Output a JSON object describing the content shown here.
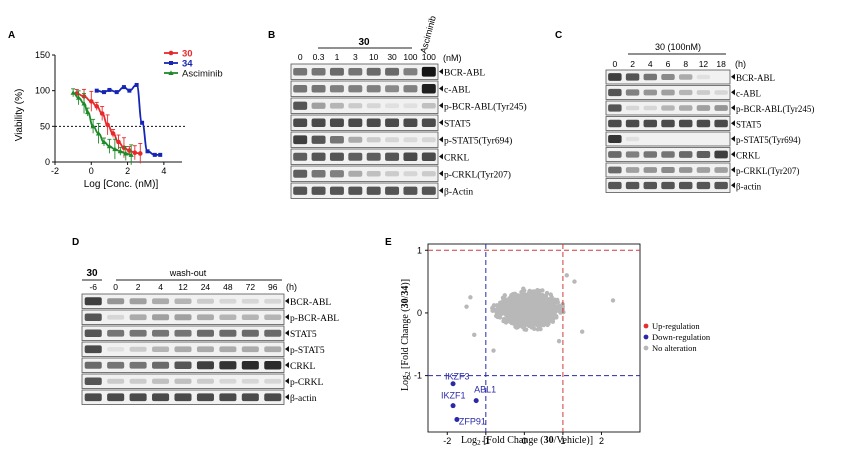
{
  "panels": {
    "A": {
      "letter": "A",
      "legend": [
        {
          "label": "30",
          "color": "#e8292b"
        },
        {
          "label": "34",
          "color": "#1626b4"
        },
        {
          "label": "Asciminib",
          "color": "#1f8a2a"
        }
      ],
      "ylabel": "Viability (%)",
      "xlabel": "Log [Conc. (nM)]",
      "x_ticks": [
        "-2",
        "0",
        "2",
        "4"
      ],
      "y_ticks": [
        "0",
        "50",
        "100",
        "150"
      ]
    },
    "B": {
      "letter": "B",
      "compound": "30",
      "extra_label": "Asciminib",
      "unit": "(nM)",
      "lanes": [
        "0",
        "0.3",
        "1",
        "3",
        "10",
        "30",
        "100",
        "100"
      ],
      "bands": [
        "BCR-ABL",
        "c-ABL",
        "p-BCR-ABL(Tyr245)",
        "STAT5",
        "p-STAT5(Tyr694)",
        "CRKL",
        "p-CRKL(Tyr207)",
        "β-Actin"
      ]
    },
    "C": {
      "letter": "C",
      "header": "30 (100nM)",
      "unit": "(h)",
      "lanes": [
        "0",
        "2",
        "4",
        "6",
        "8",
        "12",
        "18"
      ],
      "bands": [
        "BCR-ABL",
        "c-ABL",
        "p-BCR-ABL(Tyr245)",
        "STAT5",
        "p-STAT5(Tyr694)",
        "CRKL",
        "p-CRKL(Tyr207)",
        "β-actin"
      ]
    },
    "D": {
      "letter": "D",
      "compound": "30",
      "washout": "wash-out",
      "unit": "(h)",
      "lanes": [
        "-6",
        "0",
        "2",
        "4",
        "12",
        "24",
        "48",
        "72",
        "96"
      ],
      "bands": [
        "BCR-ABL",
        "p-BCR-ABL",
        "STAT5",
        "p-STAT5",
        "CRKL",
        "p-CRKL",
        "β-actin"
      ]
    },
    "E": {
      "letter": "E",
      "xlabel": "Log2 [Fold Change (30/Vehicle)]",
      "ylabel": "Log2 [Fold Change (30/34)]",
      "x_ticks": [
        "-2",
        "-1",
        "0",
        "1",
        "2"
      ],
      "y_ticks": [
        "1",
        "0",
        "-1"
      ],
      "legend": [
        {
          "label": "Up-regulation",
          "color": "#e03030"
        },
        {
          "label": "Down-regulation",
          "color": "#2a2aa8"
        },
        {
          "label": "No alteration",
          "color": "#b8b8b8"
        }
      ],
      "genes": [
        "IKZF3",
        "IKZF1",
        "ABL1",
        "ZFP91"
      ]
    }
  },
  "chart_data": [
    {
      "type": "scatter",
      "xlabel": "Log [Conc. (nM)]",
      "ylabel": "Viability (%)",
      "xlim": [
        -2,
        5
      ],
      "ylim": [
        0,
        150
      ],
      "grid": false,
      "legend_position": "top-right",
      "reference_line_y": 50,
      "series": [
        {
          "name": "30",
          "color": "#e8292b",
          "x": [
            -0.8,
            -0.4,
            0,
            0.3,
            0.6,
            0.9,
            1.2,
            1.5,
            1.8,
            2.1,
            2.4,
            2.7
          ],
          "y": [
            96,
            92,
            85,
            78,
            68,
            52,
            40,
            28,
            20,
            16,
            13,
            12
          ]
        },
        {
          "name": "34",
          "color": "#1626b4",
          "x": [
            0.3,
            0.7,
            1.0,
            1.4,
            1.8,
            2.1,
            2.5,
            2.8,
            3.1,
            3.5,
            3.8
          ],
          "y": [
            100,
            98,
            101,
            98,
            105,
            100,
            108,
            55,
            15,
            10,
            10
          ]
        },
        {
          "name": "Asciminib",
          "color": "#1f8a2a",
          "x": [
            -1.0,
            -0.7,
            -0.4,
            -0.2,
            0.1,
            0.4,
            0.7,
            1.0,
            1.3,
            1.6,
            1.9,
            2.2
          ],
          "y": [
            97,
            90,
            82,
            70,
            50,
            40,
            28,
            22,
            18,
            15,
            12,
            10
          ]
        }
      ]
    },
    {
      "type": "scatter",
      "xlabel": "Log2 [Fold Change (30/Vehicle)]",
      "ylabel": "Log2 [Fold Change (30/34)]",
      "xlim": [
        -2.5,
        3
      ],
      "ylim": [
        -1.9,
        1.1
      ],
      "threshold_lines": {
        "x": [
          -1,
          1
        ],
        "y": [
          -1,
          1
        ]
      },
      "legend_position": "right",
      "series": [
        {
          "name": "Down-regulation",
          "color": "#2a2aa8",
          "points": [
            {
              "label": "IKZF3",
              "x": -1.85,
              "y": -1.13
            },
            {
              "label": "IKZF1",
              "x": -1.85,
              "y": -1.48
            },
            {
              "label": "ABL1",
              "x": -1.25,
              "y": -1.4
            },
            {
              "label": "ZFP91",
              "x": -1.75,
              "y": -1.7
            }
          ]
        },
        {
          "name": "No alteration",
          "color": "#b8b8b8",
          "cloud_center": [
            0.1,
            0.05
          ],
          "cloud_spread": [
            0.9,
            0.3
          ]
        }
      ]
    }
  ]
}
